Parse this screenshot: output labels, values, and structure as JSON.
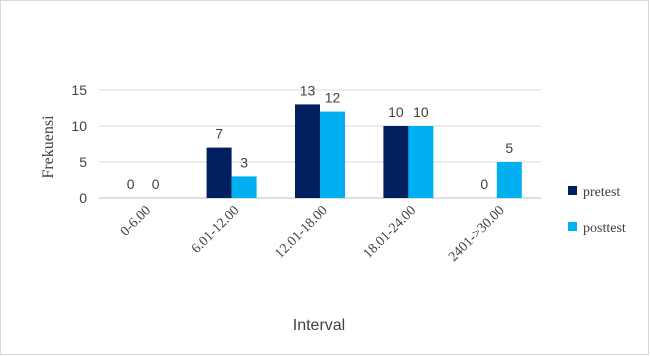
{
  "chart_data": {
    "type": "bar",
    "title": "",
    "xlabel": "Interval",
    "ylabel": "Frekuensi",
    "categories": [
      "0-6.00",
      "6.01-12.00",
      "12.01-18.00",
      "18.01-24.00",
      "2401->30.00"
    ],
    "series": [
      {
        "name": "pretest",
        "color": "#002060",
        "values": [
          0,
          7,
          13,
          10,
          0
        ]
      },
      {
        "name": "posttest",
        "color": "#00b0f0",
        "values": [
          0,
          3,
          12,
          10,
          5
        ]
      }
    ],
    "ylim": [
      0,
      15
    ],
    "yticks": [
      0,
      5,
      10,
      15
    ],
    "grid": true,
    "data_labels": true,
    "legend_position": "right"
  }
}
